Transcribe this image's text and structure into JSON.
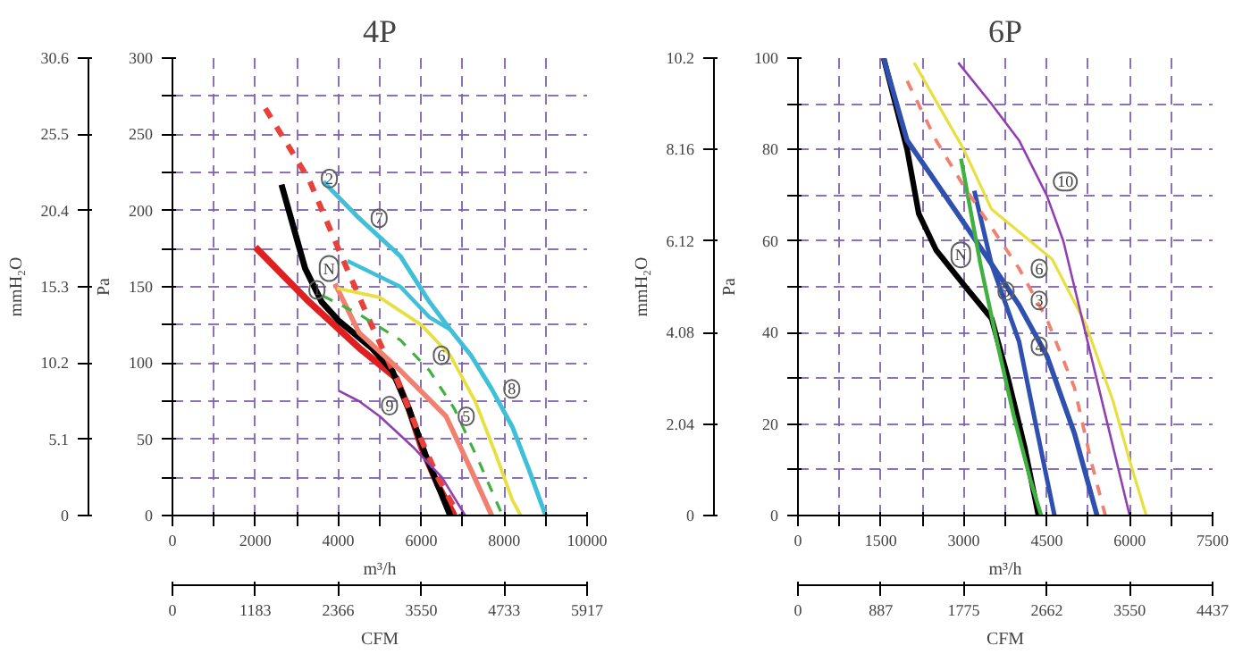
{
  "chart_data": [
    {
      "type": "line",
      "title": "4P",
      "xlabel": "m³/h",
      "ylabel": "Pa",
      "y2label": "mmH₂O",
      "x2label": "CFM",
      "xlim": [
        0,
        10000
      ],
      "xticks": [
        0,
        {
          "value": 1000,
          "label": null
        },
        2000,
        {
          "value": 3000,
          "label": null
        },
        4000,
        {
          "value": 5000,
          "label": null
        },
        6000,
        {
          "value": 7000,
          "label": null
        },
        8000,
        {
          "value": 9000,
          "label": null
        },
        10000
      ],
      "ylim": [
        0,
        300
      ],
      "yticks": [
        0,
        {
          "value": 25,
          "label": null
        },
        50,
        {
          "value": 75,
          "label": null
        },
        100,
        {
          "value": 125,
          "label": null
        },
        150,
        {
          "value": 175,
          "label": null
        },
        200,
        {
          "value": 225,
          "label": null
        },
        250,
        {
          "value": 275,
          "label": null
        },
        300
      ],
      "y2lim": [
        0,
        30.6
      ],
      "y2ticks": [
        0,
        5.1,
        10.2,
        15.3,
        20.4,
        25.5,
        30.6
      ],
      "x2lim": [
        0,
        5917
      ],
      "x2ticks": [
        0,
        1183,
        2366,
        3550,
        4733,
        5917
      ],
      "grid": true,
      "marker": "none",
      "series": [
        {
          "color": "#e02020",
          "x": [
            2000,
            3300,
            4500,
            5400,
            5700,
            6000,
            6400,
            6800
          ],
          "values": [
            176,
            140,
            110,
            90,
            70,
            45,
            20,
            0
          ]
        },
        {
          "color": "#000000",
          "x": [
            2630,
            3200,
            3600,
            4000,
            4800,
            5300,
            5700,
            6100,
            6400,
            6700
          ],
          "values": [
            217,
            162,
            140,
            128,
            110,
            95,
            70,
            40,
            20,
            0
          ]
        },
        {
          "color": "#e8403a",
          "line_style": "dashed",
          "x": [
            2240,
            3300,
            4000,
            4800,
            5400,
            6000,
            6400,
            6900
          ],
          "values": [
            267,
            220,
            175,
            125,
            90,
            50,
            25,
            0
          ]
        },
        {
          "color": "#f08070",
          "x": [
            3920,
            4500,
            5500,
            6600,
            7200,
            7700
          ],
          "values": [
            152,
            120,
            95,
            65,
            30,
            0
          ]
        },
        {
          "color": "#40c0d8",
          "x": [
            3640,
            4500,
            5500,
            6200,
            6700,
            7200,
            7700,
            8200,
            8600,
            9000
          ],
          "values": [
            219,
            195,
            170,
            140,
            122,
            105,
            83,
            58,
            30,
            0
          ]
        },
        {
          "color": "#40c0d8",
          "x": [
            4220,
            5500,
            6200,
            6700
          ],
          "values": [
            167,
            150,
            130,
            122
          ]
        },
        {
          "color": "#e8e040",
          "x": [
            3970,
            5000,
            6000,
            6700,
            7300,
            7800,
            8200,
            8400
          ],
          "values": [
            149,
            143,
            125,
            105,
            75,
            40,
            10,
            0
          ]
        },
        {
          "color": "#40b040",
          "line_style": "dashed",
          "x": [
            3630,
            4500,
            5500,
            6200,
            6800,
            7400,
            7960
          ],
          "values": [
            144,
            132,
            115,
            95,
            70,
            35,
            0
          ]
        },
        {
          "color": "#9040b0",
          "x": [
            4000,
            4500,
            5000,
            5800,
            6500,
            7060
          ],
          "values": [
            82,
            75,
            65,
            45,
            25,
            0
          ]
        }
      ],
      "annotations": [
        {
          "text": "2",
          "x": 3300,
          "y": 221
        },
        {
          "text": "N",
          "x": 3250,
          "y": 162
        },
        {
          "text": "1",
          "x": 3000,
          "y": 148
        },
        {
          "text": "7",
          "x": 4500,
          "y": 195
        },
        {
          "text": "6",
          "x": 6000,
          "y": 105
        },
        {
          "text": "8",
          "x": 7700,
          "y": 83
        },
        {
          "text": "9",
          "x": 4750,
          "y": 72
        },
        {
          "text": "5",
          "x": 6600,
          "y": 65
        }
      ]
    },
    {
      "type": "line",
      "title": "6P",
      "xlabel": "m³/h",
      "ylabel": "Pa",
      "y2label": "mmH₂O",
      "x2label": "CFM",
      "xlim": [
        0,
        7500
      ],
      "xticks": [
        0,
        {
          "value": 750,
          "label": null
        },
        1500,
        {
          "value": 2250,
          "label": null
        },
        3000,
        {
          "value": 3750,
          "label": null
        },
        4500,
        {
          "value": 5250,
          "label": null
        },
        6000,
        {
          "value": 6750,
          "label": null
        },
        7500
      ],
      "ylim": [
        0,
        100
      ],
      "yticks": [
        0,
        {
          "value": 10,
          "label": null
        },
        20,
        {
          "value": 30,
          "label": null
        },
        40,
        {
          "value": 50,
          "label": null
        },
        60,
        {
          "value": 70,
          "label": null
        },
        80,
        {
          "value": 90,
          "label": null
        },
        100
      ],
      "y2lim": [
        0,
        10.2
      ],
      "y2ticks": [
        0,
        2.04,
        4.08,
        6.12,
        8.16,
        10.2
      ],
      "x2lim": [
        0,
        4437
      ],
      "x2ticks": [
        0,
        887,
        1775,
        2662,
        3550,
        4437
      ],
      "grid": true,
      "marker": "none",
      "series": [
        {
          "color": "#000000",
          "x": [
            1550,
            1975,
            2185,
            2500,
            3030,
            3505,
            3800,
            4100,
            4350
          ],
          "values": [
            100,
            80,
            66,
            58,
            50,
            43,
            30,
            15,
            0
          ]
        },
        {
          "color": "#3050b0",
          "x": [
            1550,
            1975,
            3000,
            3500,
            4000,
            4500,
            5000,
            5410
          ],
          "values": [
            100,
            82,
            64,
            55,
            46,
            35,
            18,
            0
          ]
        },
        {
          "color": "#3050b0",
          "x": [
            3190,
            3500,
            4000,
            4300,
            4640
          ],
          "values": [
            71,
            55,
            38,
            20,
            0
          ]
        },
        {
          "color": "#40b040",
          "x": [
            2950,
            3300,
            3600,
            3900,
            4200,
            4400
          ],
          "values": [
            78,
            55,
            38,
            22,
            8,
            0
          ]
        },
        {
          "color": "#f08070",
          "line_style": "dashed",
          "x": [
            1975,
            2500,
            3000,
            3500,
            4000,
            4500,
            5000,
            5300,
            5560
          ],
          "values": [
            95,
            82,
            72,
            63,
            54,
            43,
            28,
            12,
            0
          ]
        },
        {
          "color": "#e8e040",
          "x": [
            2100,
            3000,
            3500,
            4000,
            4600,
            5200,
            5700,
            6000,
            6300
          ],
          "values": [
            99,
            80,
            67,
            62,
            56,
            42,
            25,
            12,
            0
          ]
        },
        {
          "color": "#9040b0",
          "x": [
            2900,
            3500,
            4000,
            4500,
            4800,
            5200,
            5600,
            6000
          ],
          "values": [
            99,
            90,
            82,
            70,
            60,
            40,
            20,
            0
          ]
        }
      ],
      "annotations": [
        {
          "text": "N",
          "x": 2550,
          "y": 57
        },
        {
          "text": "3",
          "x": 4000,
          "y": 47
        },
        {
          "text": "4",
          "x": 4000,
          "y": 37
        },
        {
          "text": "5",
          "x": 3400,
          "y": 49
        },
        {
          "text": "6",
          "x": 4000,
          "y": 54
        },
        {
          "text": "10",
          "x": 4400,
          "y": 73
        }
      ]
    }
  ]
}
